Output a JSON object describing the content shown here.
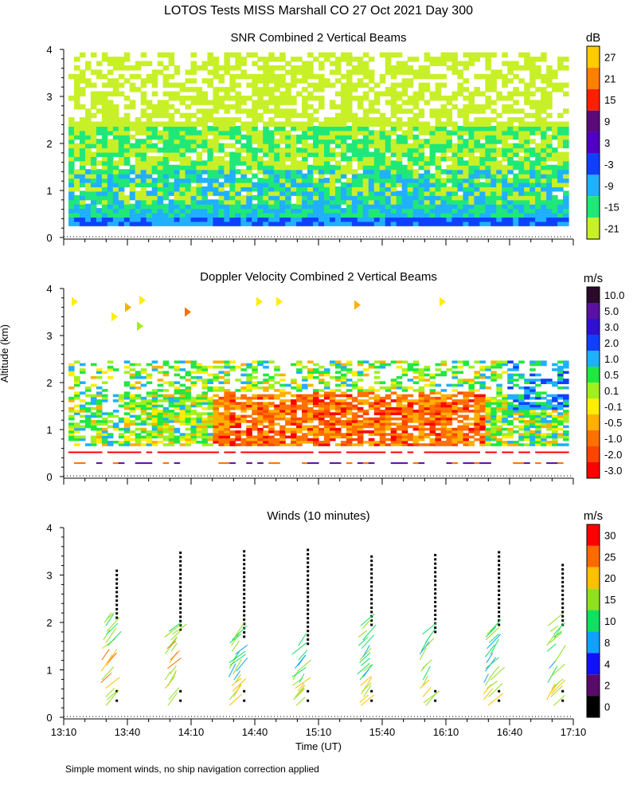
{
  "title": "LOTOS Tests MISS Marshall CO  27 Oct 2021 Day 300",
  "footnote": "Simple moment winds, no ship navigation correction applied",
  "shared_y_label": "Altitude (km)",
  "x_axis": {
    "label": "Time (UT)",
    "ticks": [
      "13:10",
      "13:40",
      "14:10",
      "14:40",
      "15:10",
      "15:40",
      "16:10",
      "16:40",
      "17:10"
    ]
  },
  "chart_data": [
    {
      "type": "heatmap",
      "title": "SNR Combined 2 Vertical Beams",
      "xlabel": "Time (UT)",
      "ylabel": "Altitude (km)",
      "xlim": [
        "13:10",
        "17:10"
      ],
      "ylim": [
        0,
        4
      ],
      "y_ticks": [
        "0",
        "1",
        "2",
        "3",
        "4"
      ],
      "colorbar": {
        "unit": "dB",
        "labels": [
          "27",
          "21",
          "15",
          "9",
          "3",
          "-3",
          "-9",
          "-15",
          "-21"
        ],
        "colors": [
          "#ffcc00",
          "#ff8000",
          "#ff2000",
          "#5a0a7a",
          "#5000c0",
          "#1040ff",
          "#20b0ff",
          "#20e878",
          "#c8f028"
        ]
      },
      "field": {
        "rows": 40,
        "cols": 90,
        "lowest_gate_km": 0.25,
        "highest_gate_km": 3.9
      }
    },
    {
      "type": "heatmap",
      "title": "Doppler Velocity Combined 2 Vertical Beams",
      "xlabel": "Time (UT)",
      "ylabel": "Altitude (km)",
      "xlim": [
        "13:10",
        "17:10"
      ],
      "ylim": [
        0,
        4
      ],
      "y_ticks": [
        "0",
        "1",
        "2",
        "3",
        "4"
      ],
      "colorbar": {
        "unit": "m/s",
        "labels": [
          "10.0",
          "5.0",
          "3.0",
          "2.0",
          "1.0",
          "0.5",
          "0.1",
          "-0.1",
          "-0.5",
          "-1.0",
          "-2.0",
          "-3.0"
        ],
        "colors": [
          "#2a0a2a",
          "#5a10a0",
          "#3010d0",
          "#1040ff",
          "#20b0ff",
          "#20e840",
          "#a0f020",
          "#ffee00",
          "#ffb000",
          "#ff7000",
          "#ff4400",
          "#ff0000"
        ]
      },
      "field": {
        "rows": 40,
        "cols": 90
      }
    },
    {
      "type": "scatter",
      "title": "Winds (10 minutes)",
      "xlabel": "Time (UT)",
      "ylabel": "Altitude (km)",
      "xlim": [
        "13:10",
        "17:10"
      ],
      "ylim": [
        0,
        4
      ],
      "y_ticks": [
        "0",
        "1",
        "2",
        "3",
        "4"
      ],
      "colorbar": {
        "unit": "m/s",
        "labels": [
          "30",
          "25",
          "20",
          "15",
          "10",
          "8",
          "4",
          "2",
          "0"
        ],
        "colors": [
          "#ff0000",
          "#ff6a00",
          "#ffc000",
          "#90e020",
          "#10e060",
          "#10a0ff",
          "#1010ff",
          "#5a0a6a",
          "#000000"
        ]
      },
      "profile_times": [
        "13:35",
        "14:05",
        "14:35",
        "15:05",
        "15:35",
        "16:05",
        "16:35",
        "17:05"
      ],
      "profile_tops_km": [
        3.1,
        3.55,
        3.55,
        3.55,
        3.45,
        3.5,
        3.55,
        3.25
      ]
    }
  ]
}
